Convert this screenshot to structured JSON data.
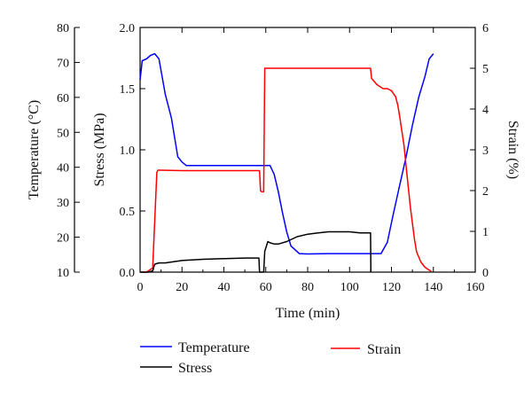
{
  "chart_data": {
    "type": "line",
    "xlabel": "Time (min)",
    "xlim": [
      0,
      160
    ],
    "xticks": [
      0,
      20,
      40,
      60,
      80,
      100,
      120,
      140,
      160
    ],
    "axes": {
      "temperature": {
        "label": "Temperature (°C)",
        "lim": [
          10,
          80
        ],
        "ticks": [
          10,
          20,
          30,
          40,
          50,
          60,
          70,
          80
        ]
      },
      "stress": {
        "label": "Stress (MPa)",
        "lim": [
          0,
          2.0
        ],
        "ticks": [
          "0.0",
          "0.5",
          "1.0",
          "1.5",
          "2.0"
        ]
      },
      "strain": {
        "label": "Strain (%)",
        "lim": [
          0,
          6
        ],
        "ticks": [
          0,
          1,
          2,
          3,
          4,
          5,
          6
        ]
      }
    },
    "series": [
      {
        "name": "Temperature",
        "axis": "temperature",
        "color": "#0000ff",
        "x": [
          0,
          1,
          3,
          5,
          7,
          9,
          12,
          15,
          18,
          20,
          22,
          26,
          30,
          40,
          50,
          55,
          60,
          62,
          64,
          66,
          68,
          70,
          72,
          76,
          80,
          90,
          100,
          110,
          112,
          115,
          118,
          121,
          124,
          127,
          130,
          133,
          136,
          138,
          140
        ],
        "y": [
          65,
          70.5,
          71,
          72,
          72.5,
          71,
          61,
          54,
          43,
          41.5,
          40.5,
          40.5,
          40.5,
          40.5,
          40.5,
          40.5,
          40.5,
          40.5,
          38,
          33,
          27,
          21.5,
          17.5,
          15.3,
          15.2,
          15.3,
          15.3,
          15.3,
          15.3,
          15.3,
          18.5,
          27,
          35,
          43,
          52,
          60,
          66,
          71,
          72.5
        ]
      },
      {
        "name": "Strain",
        "axis": "strain",
        "color": "#ff0000",
        "x": [
          0,
          3,
          6,
          8,
          8.5,
          10,
          20,
          40,
          50,
          57,
          57.5,
          58,
          59,
          59.5,
          60,
          60.5,
          70,
          90,
          100,
          110,
          110.5,
          113,
          116,
          118,
          120,
          122,
          123,
          124,
          125,
          126,
          127,
          128,
          129,
          130,
          131,
          132,
          134,
          136,
          138,
          139
        ],
        "y": [
          0,
          0,
          0.1,
          2.45,
          2.5,
          2.5,
          2.49,
          2.49,
          2.49,
          2.49,
          2.0,
          1.97,
          1.97,
          5.0,
          5.0,
          5.0,
          5.0,
          5.0,
          5.0,
          5.0,
          4.75,
          4.6,
          4.5,
          4.5,
          4.45,
          4.3,
          4.1,
          3.8,
          3.45,
          3.1,
          2.6,
          2.1,
          1.6,
          1.2,
          0.8,
          0.5,
          0.25,
          0.12,
          0.05,
          0.02
        ]
      },
      {
        "name": "Stress",
        "axis": "stress",
        "color": "#000000",
        "x": [
          0,
          4,
          6,
          7,
          9,
          12,
          16,
          20,
          30,
          40,
          50,
          56.7,
          57,
          59,
          59.5,
          61,
          62,
          64,
          66,
          70,
          75,
          80,
          85,
          90,
          95,
          100,
          105,
          108,
          110,
          110.2
        ],
        "y": [
          0,
          0,
          0.01,
          0.065,
          0.075,
          0.075,
          0.085,
          0.095,
          0.105,
          0.11,
          0.115,
          0.115,
          0,
          0,
          0.17,
          0.25,
          0.24,
          0.23,
          0.23,
          0.25,
          0.29,
          0.31,
          0.32,
          0.33,
          0.33,
          0.33,
          0.32,
          0.32,
          0.32,
          0
        ]
      }
    ],
    "legend": {
      "placement": "bottom",
      "entries": [
        "Temperature",
        "Strain",
        "Stress"
      ]
    }
  }
}
